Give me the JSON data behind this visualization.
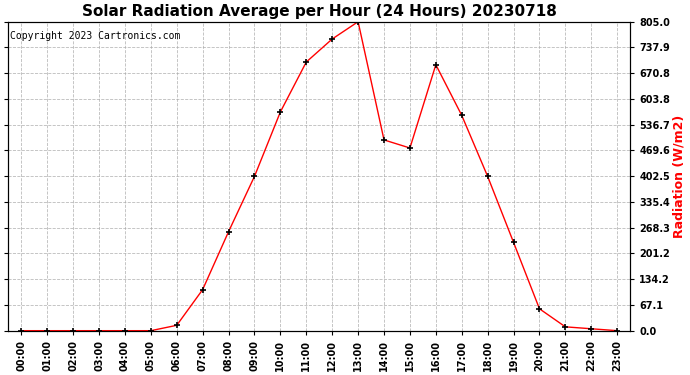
{
  "title": "Solar Radiation Average per Hour (24 Hours) 20230718",
  "copyright_text": "Copyright 2023 Cartronics.com",
  "ylabel": "Radiation (W/m2)",
  "ylabel_color": "red",
  "hours": [
    0,
    1,
    2,
    3,
    4,
    5,
    6,
    7,
    8,
    9,
    10,
    11,
    12,
    13,
    14,
    15,
    16,
    17,
    18,
    19,
    20,
    21,
    22,
    23
  ],
  "values": [
    0.0,
    0.0,
    0.0,
    0.0,
    0.0,
    0.0,
    14.0,
    107.0,
    258.0,
    402.0,
    570.0,
    700.0,
    760.0,
    805.0,
    497.0,
    476.0,
    693.0,
    561.0,
    402.0,
    230.0,
    57.0,
    10.0,
    5.0,
    0.0
  ],
  "line_color": "red",
  "marker": "+",
  "marker_color": "black",
  "marker_size": 5,
  "marker_linewidth": 1.2,
  "line_width": 1.0,
  "ylim": [
    0.0,
    805.0
  ],
  "yticks": [
    0.0,
    67.1,
    134.2,
    201.2,
    268.3,
    335.4,
    402.5,
    469.6,
    536.7,
    603.8,
    670.8,
    737.9,
    805.0
  ],
  "background_color": "#ffffff",
  "grid_color": "#aaaaaa",
  "title_fontsize": 11,
  "copyright_fontsize": 7,
  "ylabel_fontsize": 9,
  "tick_fontsize": 7,
  "border_color": "#000000"
}
